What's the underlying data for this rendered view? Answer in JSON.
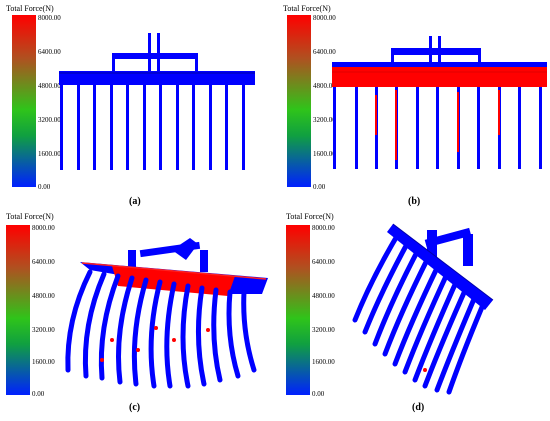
{
  "legend": {
    "title": "Total Force(N)",
    "ticks": [
      "8000.00",
      "6400.00",
      "4800.00",
      "3200.00",
      "1600.00",
      "0.00"
    ]
  },
  "panels": [
    {
      "caption": "(a)"
    },
    {
      "caption": "(b)"
    },
    {
      "caption": "(c)"
    },
    {
      "caption": "(d)"
    }
  ],
  "colors": {
    "low": "#0000ff",
    "high": "#ff0000",
    "mid": "#2fc41a"
  }
}
